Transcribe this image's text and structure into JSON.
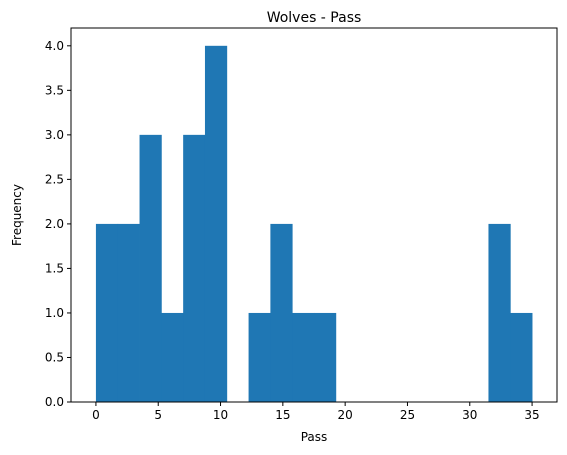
{
  "chart_data": {
    "type": "bar",
    "title": "Wolves - Pass",
    "xlabel": "Pass",
    "ylabel": "Frequency",
    "xlim": [
      -2,
      37
    ],
    "ylim": [
      0,
      4.2
    ],
    "xticks": [
      0,
      5,
      10,
      15,
      20,
      25,
      30,
      35
    ],
    "xtick_labels": [
      "0",
      "5",
      "10",
      "15",
      "20",
      "25",
      "30",
      "35"
    ],
    "yticks": [
      0,
      0.5,
      1,
      1.5,
      2,
      2.5,
      3,
      3.5,
      4
    ],
    "ytick_labels": [
      "0.0",
      "0.5",
      "1.0",
      "1.5",
      "2.0",
      "2.5",
      "3.0",
      "3.5",
      "4.0"
    ],
    "bin_edges": [
      0,
      1.75,
      3.5,
      5.25,
      7,
      8.75,
      10.5,
      12.25,
      14,
      15.75,
      17.5,
      19.25,
      21,
      22.75,
      24.5,
      26.25,
      28,
      29.75,
      31.5,
      33.25,
      35
    ],
    "counts": [
      2,
      2,
      3,
      1,
      3,
      4,
      0,
      1,
      2,
      1,
      1,
      0,
      0,
      0,
      0,
      0,
      0,
      0,
      2,
      1
    ],
    "bar_color": "#1f77b4",
    "grid": false,
    "legend": "none"
  }
}
